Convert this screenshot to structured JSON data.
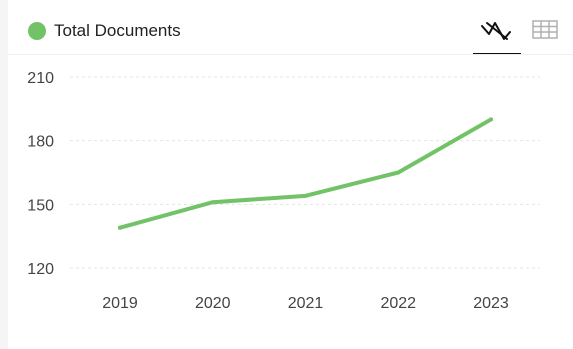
{
  "legend": {
    "label": "Total Documents",
    "color": "#72c267"
  },
  "view_toggle": {
    "chart_icon": "line-chart-icon",
    "table_icon": "table-grid-icon",
    "active": "chart"
  },
  "chart_data": {
    "type": "line",
    "categories": [
      "2019",
      "2020",
      "2021",
      "2022",
      "2023"
    ],
    "series": [
      {
        "name": "Total Documents",
        "values": [
          139,
          151,
          154,
          165,
          190
        ],
        "color": "#72c267"
      }
    ],
    "yticks": [
      120,
      150,
      180,
      210
    ],
    "ylim": [
      112,
      218
    ],
    "grid": true,
    "legend_position": "top-left"
  }
}
